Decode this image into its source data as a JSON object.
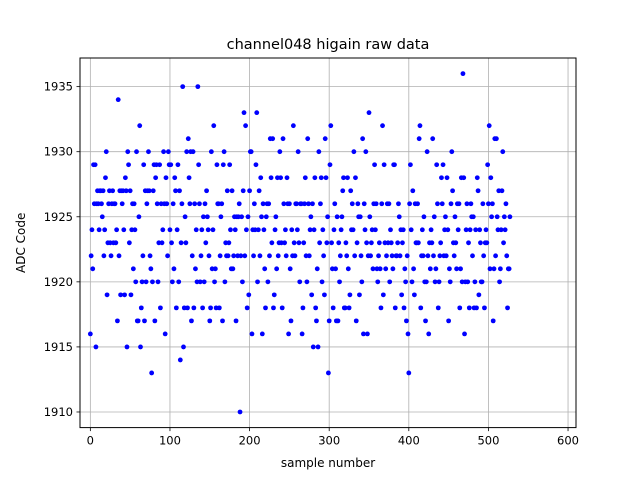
{
  "chart_data": {
    "type": "scatter",
    "title": "channel048 higain raw data",
    "xlabel": "sample number",
    "ylabel": "ADC Code",
    "xlim": [
      -13,
      610
    ],
    "ylim": [
      1908.8,
      1937.2
    ],
    "x_ticks": [
      0,
      100,
      200,
      300,
      400,
      500,
      600
    ],
    "y_ticks": [
      1910,
      1915,
      1920,
      1925,
      1930,
      1935
    ],
    "grid": true,
    "marker_color": "#0000ff",
    "series": [
      {
        "values": [
          1916,
          1922,
          1924,
          1921,
          1929,
          1926,
          1929,
          1915,
          1926,
          1927,
          1926,
          1924,
          1927,
          1927,
          1926,
          1925,
          1927,
          1922,
          1924,
          1928,
          1930,
          1919,
          1923,
          1926,
          1927,
          1923,
          1922,
          1926,
          1927,
          1923,
          1926,
          1926,
          1923,
          1924,
          1917,
          1934,
          1922,
          1927,
          1919,
          1927,
          1926,
          1927,
          1924,
          1919,
          1928,
          1927,
          1915,
          1930,
          1929,
          1923,
          1927,
          1919,
          1924,
          1926,
          1921,
          1926,
          1924,
          1920,
          1930,
          1917,
          1917,
          1925,
          1932,
          1915,
          1918,
          1920,
          1922,
          1929,
          1917,
          1927,
          1920,
          1926,
          1927,
          1930,
          1927,
          1922,
          1921,
          1913,
          1920,
          1927,
          1929,
          1917,
          1928,
          1929,
          1926,
          1920,
          1923,
          1929,
          1918,
          1926,
          1923,
          1924,
          1930,
          1926,
          1916,
          1928,
          1926,
          1922,
          1930,
          1929,
          1924,
          1929,
          1923,
          1920,
          1926,
          1921,
          1928,
          1927,
          1918,
          1924,
          1929,
          1920,
          1927,
          1914,
          1923,
          1926,
          1935,
          1915,
          1918,
          1925,
          1923,
          1930,
          1918,
          1931,
          1928,
          1926,
          1930,
          1917,
          1922,
          1930,
          1918,
          1926,
          1921,
          1924,
          1920,
          1935,
          1929,
          1926,
          1920,
          1922,
          1924,
          1918,
          1925,
          1920,
          1926,
          1923,
          1927,
          1925,
          1924,
          1922,
          1917,
          1918,
          1930,
          1921,
          1924,
          1932,
          1920,
          1921,
          1918,
          1929,
          1926,
          1926,
          1918,
          1922,
          1925,
          1926,
          1917,
          1929,
          1930,
          1920,
          1923,
          1922,
          1927,
          1922,
          1923,
          1929,
          1924,
          1921,
          1927,
          1921,
          1922,
          1925,
          1924,
          1917,
          1925,
          1922,
          1925,
          1926,
          1910,
          1922,
          1925,
          1920,
          1927,
          1933,
          1922,
          1932,
          1924,
          1918,
          1925,
          1919,
          1927,
          1930,
          1930,
          1916,
          1924,
          1922,
          1926,
          1924,
          1929,
          1933,
          1920,
          1924,
          1927,
          1922,
          1928,
          1925,
          1916,
          1926,
          1924,
          1921,
          1918,
          1925,
          1926,
          1920,
          1926,
          1922,
          1931,
          1928,
          1923,
          1931,
          1918,
          1919,
          1924,
          1925,
          1921,
          1928,
          1922,
          1923,
          1930,
          1928,
          1923,
          1918,
          1931,
          1926,
          1923,
          1924,
          1922,
          1928,
          1926,
          1916,
          1926,
          1921,
          1917,
          1924,
          1922,
          1932,
          1923,
          1922,
          1926,
          1926,
          1924,
          1930,
          1923,
          1920,
          1926,
          1926,
          1916,
          1918,
          1923,
          1926,
          1928,
          1922,
          1920,
          1931,
          1926,
          1922,
          1924,
          1925,
          1919,
          1926,
          1915,
          1924,
          1928,
          1918,
          1917,
          1921,
          1915,
          1930,
          1923,
          1926,
          1928,
          1920,
          1924,
          1922,
          1919,
          1931,
          1928,
          1923,
          1925,
          1913,
          1917,
          1929,
          1932,
          1923,
          1921,
          1918,
          1924,
          1926,
          1921,
          1917,
          1925,
          1917,
          1923,
          1920,
          1922,
          1924,
          1925,
          1927,
          1928,
          1918,
          1918,
          1923,
          1922,
          1928,
          1921,
          1918,
          1919,
          1927,
          1924,
          1926,
          1924,
          1930,
          1922,
          1928,
          1917,
          1923,
          1926,
          1925,
          1919,
          1925,
          1922,
          1920,
          1931,
          1916,
          1926,
          1924,
          1930,
          1923,
          1916,
          1922,
          1933,
          1925,
          1922,
          1923,
          1924,
          1921,
          1926,
          1929,
          1924,
          1926,
          1921,
          1920,
          1922,
          1923,
          1921,
          1918,
          1926,
          1932,
          1919,
          1929,
          1923,
          1921,
          1922,
          1926,
          1923,
          1926,
          1920,
          1924,
          1923,
          1922,
          1921,
          1929,
          1929,
          1918,
          1922,
          1922,
          1923,
          1926,
          1925,
          1922,
          1924,
          1919,
          1923,
          1924,
          1918,
          1921,
          1920,
          1917,
          1922,
          1916,
          1913,
          1926,
          1929,
          1924,
          1920,
          1927,
          1921,
          1919,
          1926,
          1923,
          1923,
          1926,
          1923,
          1931,
          1932,
          1918,
          1922,
          1924,
          1922,
          1925,
          1920,
          1917,
          1920,
          1930,
          1922,
          1916,
          1923,
          1921,
          1924,
          1923,
          1931,
          1922,
          1925,
          1920,
          1921,
          1929,
          1926,
          1918,
          1920,
          1922,
          1923,
          1928,
          1926,
          1929,
          1922,
          1924,
          1925,
          1922,
          1928,
          1924,
          1917,
          1921,
          1920,
          1926,
          1930,
          1927,
          1923,
          1922,
          1925,
          1923,
          1921,
          1926,
          1924,
          1926,
          1918,
          1921,
          1928,
          1920,
          1936,
          1928,
          1916,
          1920,
          1924,
          1926,
          1920,
          1923,
          1918,
          1924,
          1926,
          1925,
          1922,
          1925,
          1918,
          1920,
          1924,
          1918,
          1928,
          1927,
          1919,
          1924,
          1923,
          1920,
          1920,
          1926,
          1922,
          1918,
          1923,
          1924,
          1923,
          1929,
          1926,
          1932,
          1921,
          1928,
          1925,
          1926,
          1917,
          1921,
          1931,
          1922,
          1931,
          1925,
          1924,
          1927,
          1920,
          1921,
          1924,
          1927,
          1930,
          1923,
          1925,
          1924,
          1926,
          1922,
          1918,
          1921,
          1921,
          1925
        ]
      }
    ]
  }
}
